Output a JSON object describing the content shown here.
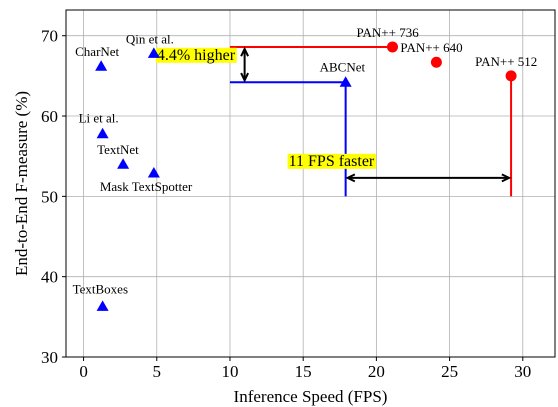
{
  "chart_data": {
    "type": "scatter",
    "xlabel": "Inference Speed (FPS)",
    "ylabel": "End-to-End F-measure (%)",
    "xlim": [
      -1.2,
      32.2
    ],
    "ylim": [
      30,
      73.2
    ],
    "xticks": [
      0,
      5,
      10,
      15,
      20,
      25,
      30
    ],
    "yticks": [
      30,
      40,
      50,
      60,
      70
    ],
    "grid": true,
    "series": [
      {
        "color": "#0000ff",
        "marker": "triangle",
        "points": [
          {
            "label": "CharNet",
            "x": 1.2,
            "y": 66.2
          },
          {
            "label": "Qin et al.",
            "x": 4.8,
            "y": 67.8
          },
          {
            "label": "Li et al.",
            "x": 1.3,
            "y": 57.8
          },
          {
            "label": "TextNet",
            "x": 2.7,
            "y": 54.0
          },
          {
            "label": "Mask TextSpotter",
            "x": 4.8,
            "y": 52.9
          },
          {
            "label": "TextBoxes",
            "x": 1.3,
            "y": 36.3
          },
          {
            "label": "ABCNet",
            "x": 17.9,
            "y": 64.2
          }
        ]
      },
      {
        "color": "#ff0000",
        "marker": "circle",
        "points": [
          {
            "label": "PAN++ 736",
            "x": 21.1,
            "y": 68.6
          },
          {
            "label": "PAN++ 640",
            "x": 24.1,
            "y": 66.7
          },
          {
            "label": "PAN++ 512",
            "x": 29.2,
            "y": 65.0
          }
        ]
      }
    ],
    "annotations": {
      "accuracy_gap": {
        "text": "4.4% higher",
        "color": "#ffff00"
      },
      "speed_gap": {
        "text": "11 FPS faster",
        "color": "#ffff00"
      }
    }
  }
}
